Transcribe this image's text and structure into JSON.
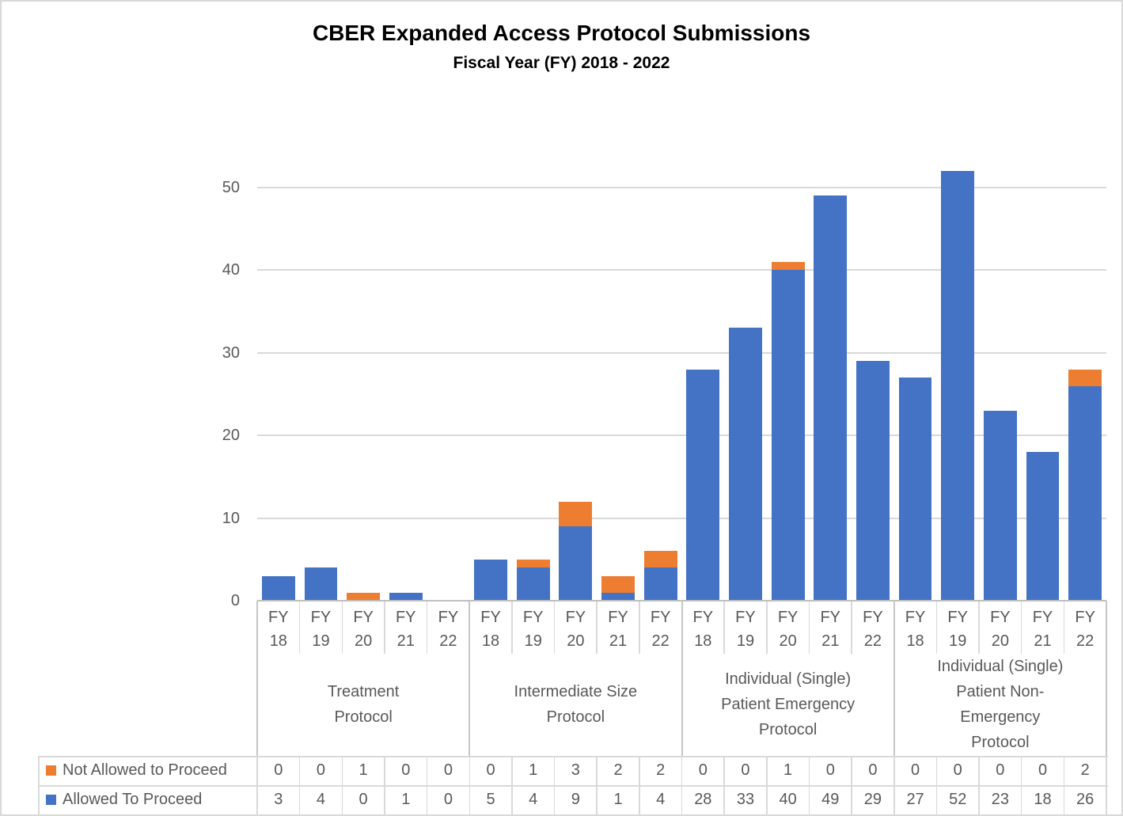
{
  "chart_data": {
    "type": "bar",
    "stacked": true,
    "title": "CBER Expanded Access Protocol Submissions",
    "subtitle": "Fiscal Year (FY) 2018 - 2022",
    "fiscal_years": [
      "FY 18",
      "FY 19",
      "FY 20",
      "FY 21",
      "FY 22"
    ],
    "groups": [
      {
        "label": "Treatment Protocol",
        "lines": [
          "Treatment",
          "Protocol"
        ]
      },
      {
        "label": "Intermediate Size Protocol",
        "lines": [
          "Intermediate Size",
          "Protocol"
        ]
      },
      {
        "label": "Individual (Single) Patient Emergency Protocol",
        "lines": [
          "Individual (Single)",
          "Patient Emergency",
          "Protocol"
        ]
      },
      {
        "label": "Individual (Single) Patient Non-Emergency Protocol",
        "lines": [
          "Individual (Single)",
          "Patient Non-",
          "Emergency",
          "Protocol"
        ]
      }
    ],
    "series": [
      {
        "name": "Not Allowed to Proceed",
        "color": "#ED7D31",
        "values": [
          0,
          0,
          1,
          0,
          0,
          0,
          1,
          3,
          2,
          2,
          0,
          0,
          1,
          0,
          0,
          0,
          0,
          0,
          0,
          2
        ]
      },
      {
        "name": "Allowed To Proceed",
        "color": "#4472C4",
        "values": [
          3,
          4,
          0,
          1,
          0,
          5,
          4,
          9,
          1,
          4,
          28,
          33,
          40,
          49,
          29,
          27,
          52,
          23,
          18,
          26
        ]
      }
    ],
    "y_ticks": [
      0,
      10,
      20,
      30,
      40,
      50
    ],
    "ylim": [
      0,
      56
    ],
    "grid": true,
    "legend_position": "table-left",
    "colors": {
      "gridline": "#D9D9D9",
      "axis_line": "#BFBFBF",
      "cell_border": "#D9D9D9",
      "group_border": "#C6C6C6",
      "text": "#595959",
      "title_text": "#000000",
      "background": "#FFFFFF"
    }
  }
}
